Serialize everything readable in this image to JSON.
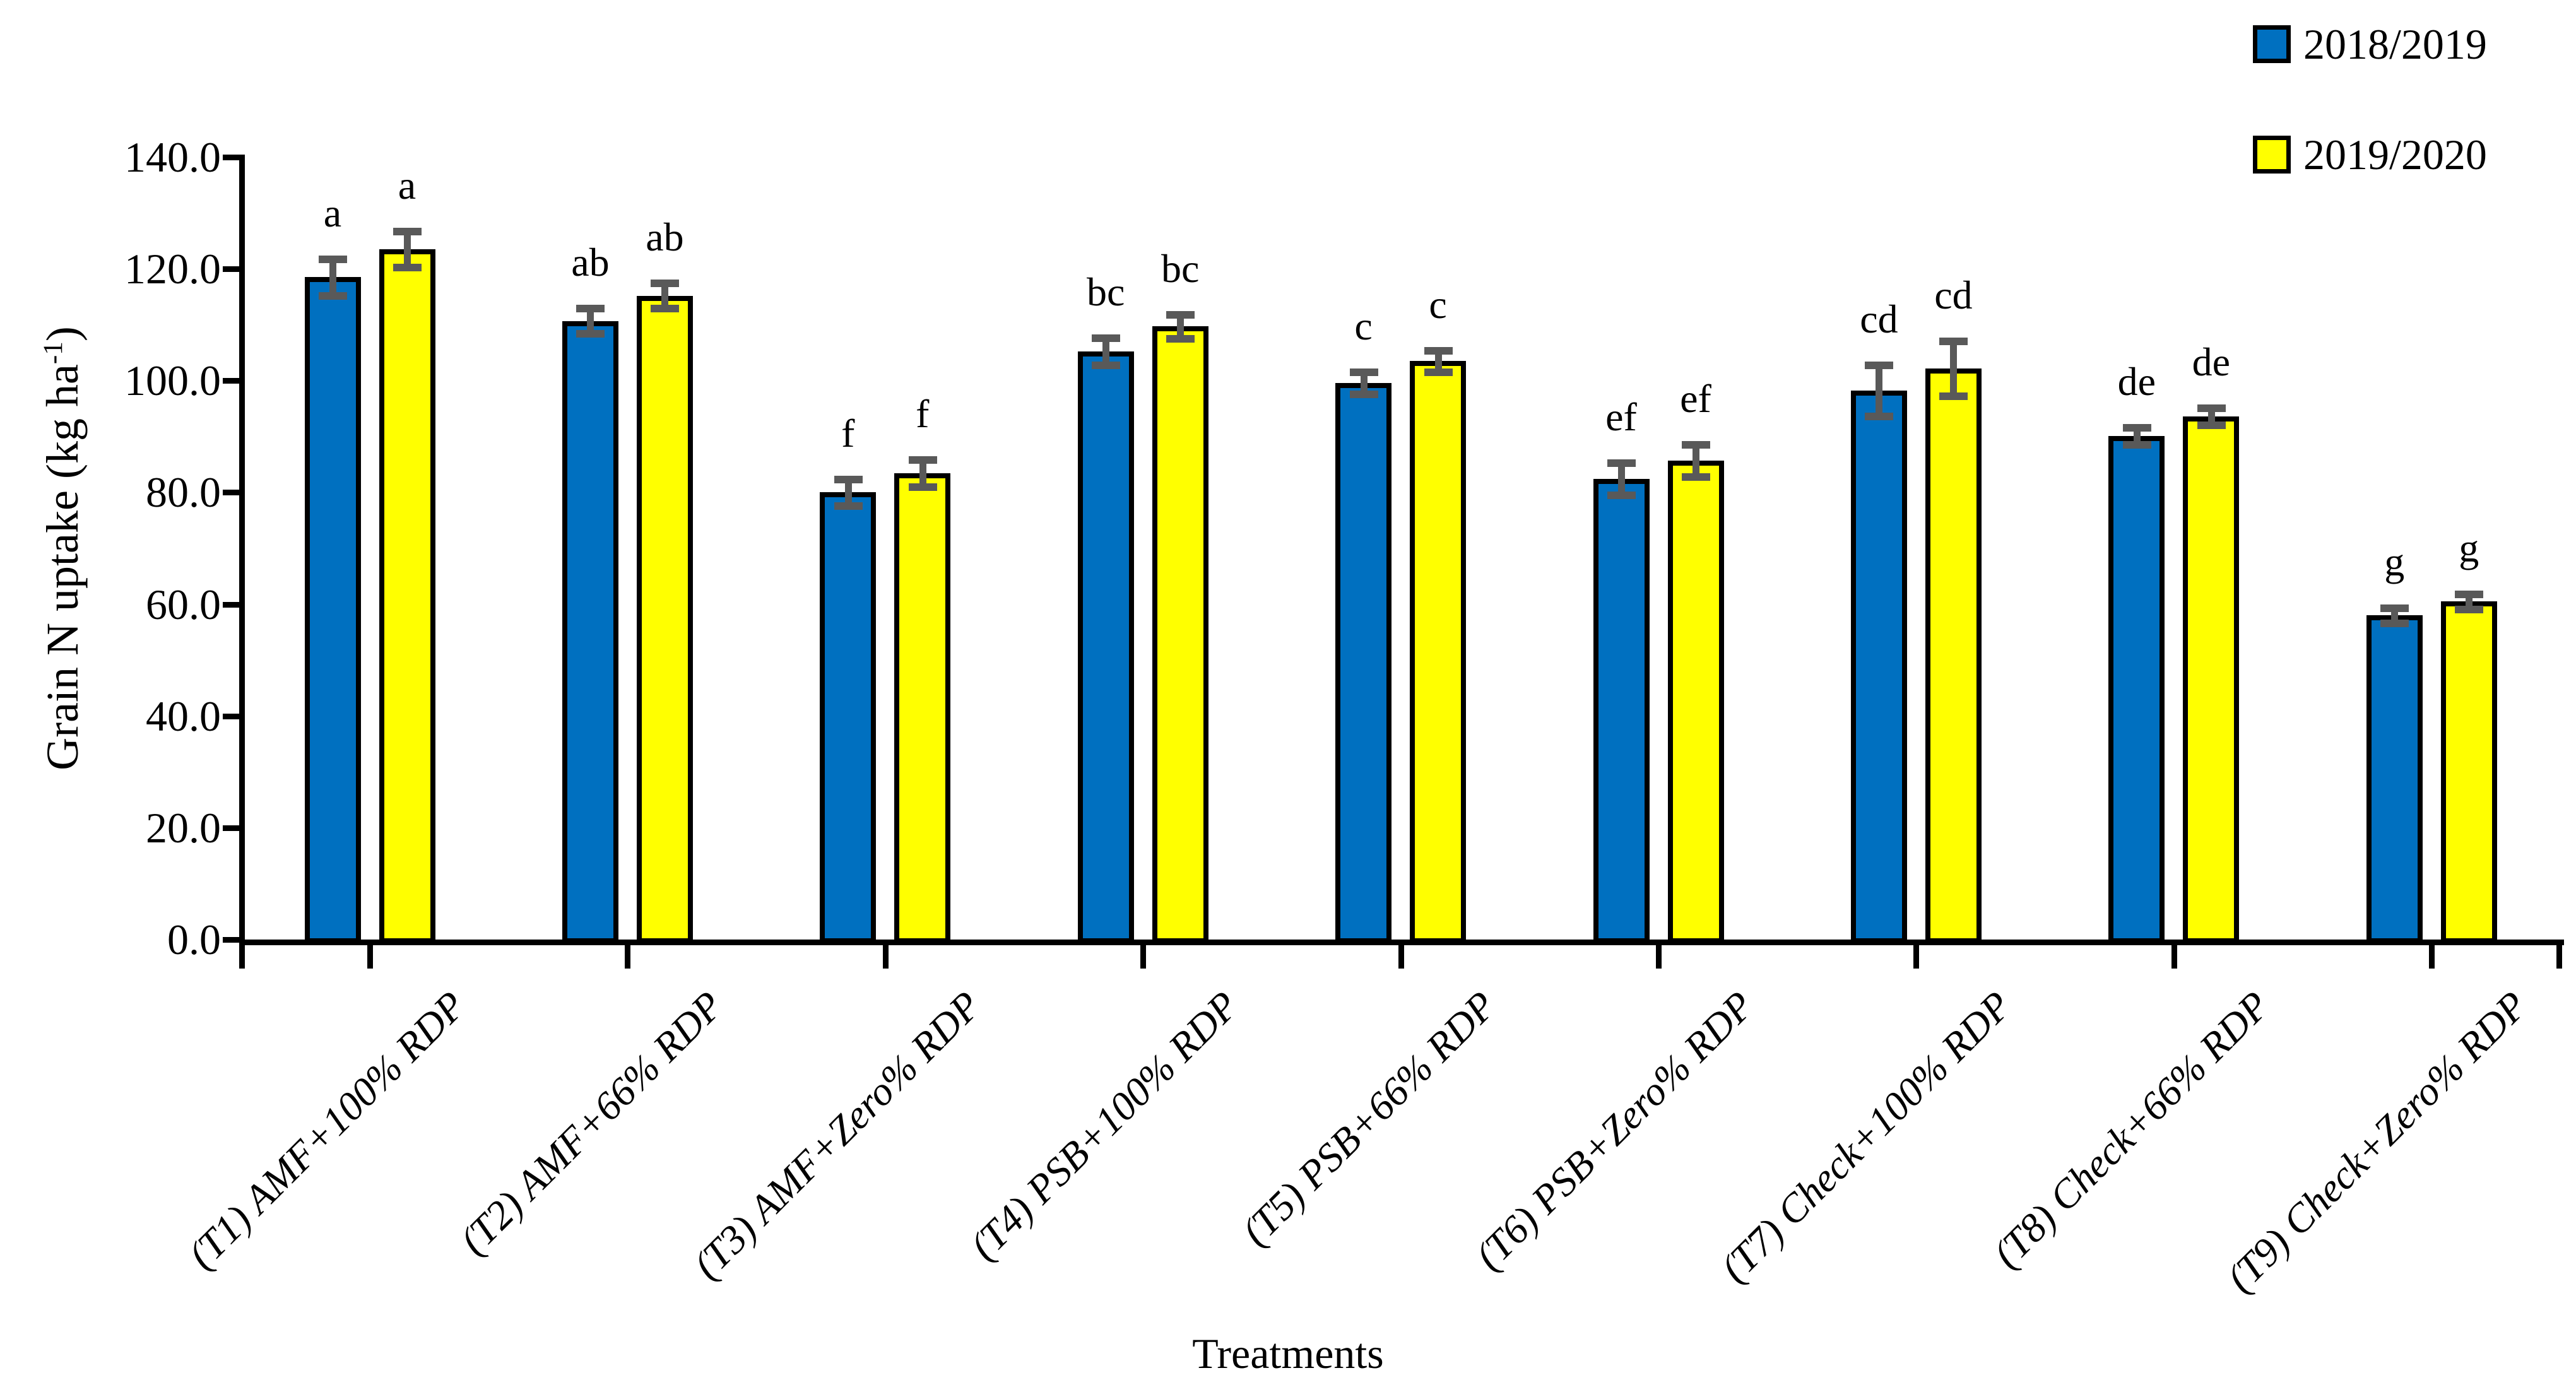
{
  "figure": {
    "background": "#FFFFFF"
  },
  "legend": {
    "items": [
      {
        "label": "2018/2019",
        "color": "#0070C0"
      },
      {
        "label": "2019/2020",
        "color": "#FFFF00"
      }
    ]
  },
  "axes": {
    "y_title_prefix": "Grain N uptake (kg ha",
    "y_title_sup": "-1",
    "y_title_suffix": ")",
    "x_title": "Treatments",
    "y_tick_labels": [
      "0.0",
      "20.0",
      "40.0",
      "60.0",
      "80.0",
      "100.0",
      "120.0",
      "140.0"
    ]
  },
  "chart_data": {
    "type": "bar",
    "title": "",
    "xlabel": "Treatments",
    "ylabel": "Grain N uptake (kg ha-1)",
    "ylim": [
      0,
      140
    ],
    "ytick_step": 20,
    "grid": false,
    "legend_position": "top-right",
    "categories": [
      "(T1) AMF+100% RDP",
      "(T2) AMF+66% RDP",
      "(T3) AMF+Zero% RDP",
      "(T4) PSB+100% RDP",
      "(T5) PSB+66% RDP",
      "(T6) PSB+Zero% RDP",
      "(T7) Check+100% RDP",
      "(T8) Check+66% RDP",
      "(T9) Check+Zero% RDP"
    ],
    "series": [
      {
        "name": "2018/2019",
        "color": "#0070C0",
        "values": [
          118.5,
          110.7,
          80.0,
          105.2,
          99.6,
          82.4,
          98.2,
          90.1,
          58.0
        ],
        "errors": [
          3.3,
          2.3,
          2.4,
          2.5,
          2.0,
          2.9,
          4.6,
          1.6,
          1.4
        ],
        "letters": [
          "a",
          "ab",
          "f",
          "bc",
          "c",
          "ef",
          "cd",
          "de",
          "g"
        ]
      },
      {
        "name": "2019/2020",
        "color": "#FFFF00",
        "values": [
          123.5,
          115.2,
          83.4,
          109.7,
          103.5,
          85.7,
          102.2,
          93.6,
          60.5
        ],
        "errors": [
          3.3,
          2.3,
          2.5,
          2.2,
          2.0,
          2.9,
          5.0,
          1.6,
          1.4
        ],
        "letters": [
          "a",
          "ab",
          "f",
          "bc",
          "c",
          "ef",
          "cd",
          "de",
          "g"
        ]
      }
    ],
    "error_bar_color": "#595959",
    "bar_border_color": "#000000"
  }
}
